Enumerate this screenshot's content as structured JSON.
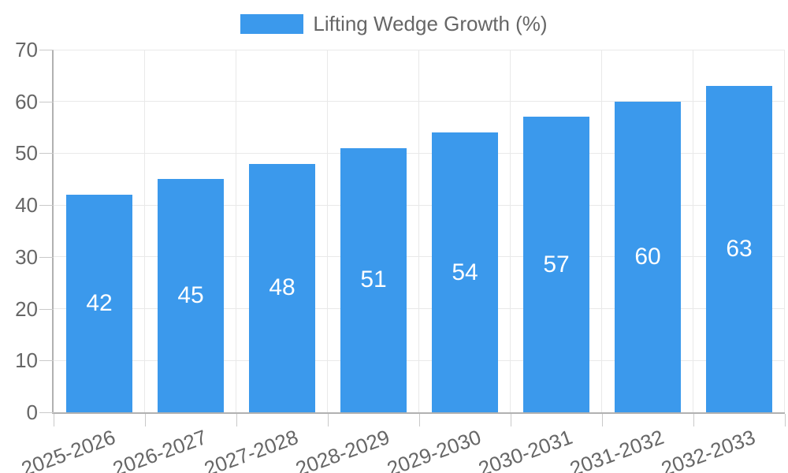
{
  "legend": {
    "label": "Lifting Wedge Growth (%)"
  },
  "chart_data": {
    "type": "bar",
    "title": "",
    "categories": [
      "2025-2026",
      "2026-2027",
      "2027-2028",
      "2028-2029",
      "2029-2030",
      "2030-2031",
      "2031-2032",
      "2032-2033"
    ],
    "series": [
      {
        "name": "Lifting Wedge Growth (%)",
        "values": [
          42,
          45,
          48,
          51,
          54,
          57,
          60,
          63
        ]
      }
    ],
    "xlabel": "",
    "ylabel": "",
    "ylim": [
      0,
      70
    ],
    "yticks": [
      0,
      10,
      20,
      30,
      40,
      50,
      60,
      70
    ],
    "grid": true,
    "legend_position": "top",
    "bar_labels_visible": true
  },
  "colors": {
    "bar_fill": "#3b99ec",
    "bar_label": "#ffffff",
    "axis_text": "#666666",
    "grid_line": "#e9e9e9",
    "axis_line": "#b1b1b1",
    "tick_mark": "#c9c9c9",
    "background": "#ffffff"
  }
}
